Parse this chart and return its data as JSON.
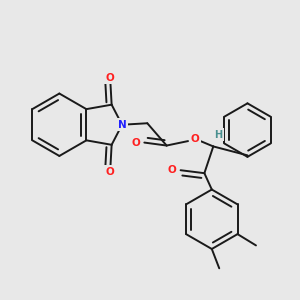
{
  "background_color": "#e8e8e8",
  "bond_color": "#1a1a1a",
  "N_color": "#2020ff",
  "O_color": "#ff2020",
  "H_color": "#4a9090",
  "lw": 1.4,
  "figsize": [
    3.0,
    3.0
  ],
  "dpi": 100,
  "xlim": [
    0,
    10
  ],
  "ylim": [
    0,
    10
  ]
}
